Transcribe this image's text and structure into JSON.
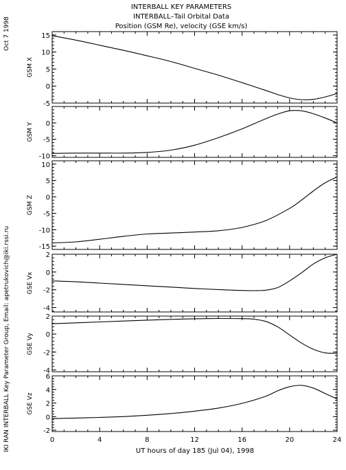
{
  "chart_data": {
    "type": "line",
    "title": [
      "INTERBALL KEY PARAMETERS",
      "INTERBALL–Tail Orbital Data",
      "Position (GSM Re), velocity (GSE km/s)"
    ],
    "date_stamp": "Oct  7 1998",
    "side_credit": "IKI RAN INTERBALL Key Parameter Group, Email: apetrukovich@iki.rssi.ru",
    "xlabel": "UT hours of day 185 (Jul 04), 1998",
    "xlim": [
      0,
      24
    ],
    "xticks": [
      0,
      4,
      8,
      12,
      16,
      20,
      24
    ],
    "panels": [
      {
        "ylabel": "GSM X",
        "ylim": [
          -5,
          16
        ],
        "yticks": [
          -5,
          0,
          5,
          10,
          15
        ],
        "x": [
          0,
          2,
          4,
          6,
          8,
          10,
          12,
          14,
          16,
          18,
          19,
          20,
          21,
          22,
          23,
          24
        ],
        "y": [
          14.8,
          13.5,
          12.0,
          10.5,
          8.9,
          7.2,
          5.2,
          3.2,
          1.0,
          -1.3,
          -2.5,
          -3.5,
          -4.0,
          -3.9,
          -3.2,
          -2.2
        ]
      },
      {
        "ylabel": "GSM Y",
        "ylim": [
          -10.5,
          5
        ],
        "yticks": [
          -10,
          -5,
          0
        ],
        "x": [
          0,
          2,
          4,
          6,
          8,
          10,
          12,
          14,
          16,
          18,
          19,
          20,
          21,
          22,
          23,
          24
        ],
        "y": [
          -9.3,
          -9.2,
          -9.2,
          -9.2,
          -9.0,
          -8.3,
          -6.8,
          -4.5,
          -1.8,
          1.3,
          2.7,
          3.7,
          3.7,
          2.8,
          1.5,
          0.0
        ]
      },
      {
        "ylabel": "GSM Z",
        "ylim": [
          -16,
          11
        ],
        "yticks": [
          -15,
          -10,
          -5,
          0,
          5,
          10
        ],
        "x": [
          0,
          2,
          4,
          6,
          8,
          10,
          12,
          14,
          16,
          18,
          20,
          21,
          22,
          23,
          24
        ],
        "y": [
          -14.0,
          -13.7,
          -12.9,
          -12.0,
          -11.3,
          -11.0,
          -10.7,
          -10.3,
          -9.3,
          -7.2,
          -3.5,
          -1.0,
          1.8,
          4.3,
          6.1
        ]
      },
      {
        "ylabel": "GSE Vx",
        "ylim": [
          -4.5,
          2
        ],
        "yticks": [
          -4,
          -2,
          0,
          2
        ],
        "x": [
          0,
          2,
          4,
          6,
          8,
          10,
          12,
          14,
          16,
          17,
          18,
          19,
          20,
          21,
          22,
          23,
          24
        ],
        "y": [
          -1.0,
          -1.1,
          -1.25,
          -1.4,
          -1.55,
          -1.7,
          -1.85,
          -1.98,
          -2.08,
          -2.1,
          -2.05,
          -1.75,
          -1.0,
          -0.1,
          0.9,
          1.6,
          2.0
        ]
      },
      {
        "ylabel": "GSE Vy",
        "ylim": [
          -4.2,
          2
        ],
        "yticks": [
          -4,
          -2,
          0,
          2
        ],
        "x": [
          0,
          2,
          4,
          6,
          8,
          10,
          12,
          14,
          16,
          17,
          18,
          19,
          20,
          21,
          22,
          23,
          24
        ],
        "y": [
          1.15,
          1.25,
          1.35,
          1.45,
          1.55,
          1.63,
          1.7,
          1.73,
          1.72,
          1.65,
          1.4,
          0.8,
          -0.1,
          -1.0,
          -1.7,
          -2.1,
          -2.15
        ]
      },
      {
        "ylabel": "GSE Vz",
        "ylim": [
          -2.2,
          6
        ],
        "yticks": [
          -2,
          0,
          2,
          4,
          6
        ],
        "x": [
          0,
          2,
          4,
          6,
          8,
          10,
          12,
          14,
          16,
          18,
          19,
          20,
          21,
          22,
          23,
          24
        ],
        "y": [
          -0.3,
          -0.22,
          -0.12,
          0.0,
          0.2,
          0.45,
          0.8,
          1.25,
          1.95,
          3.0,
          3.8,
          4.4,
          4.6,
          4.2,
          3.4,
          2.6
        ]
      }
    ]
  }
}
